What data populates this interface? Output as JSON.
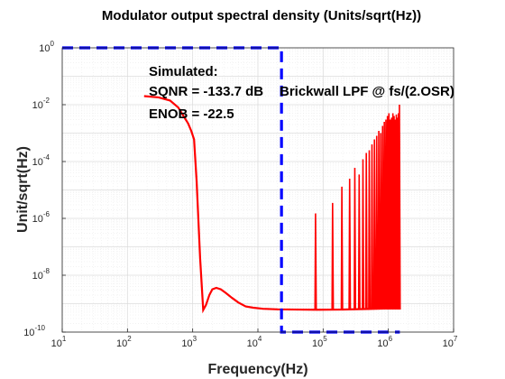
{
  "chart_data": {
    "type": "line",
    "title": "Modulator output spectral density (Units/sqrt(Hz))",
    "xlabel": "Frequency(Hz)",
    "ylabel": "Unit/sqrt(Hz)",
    "xscale": "log",
    "yscale": "log",
    "xlim": [
      10,
      10000000
    ],
    "ylim": [
      1e-10,
      1
    ],
    "grid": "major and minor",
    "x_tick_labels": [
      {
        "base": "10",
        "exp": "1"
      },
      {
        "base": "10",
        "exp": "2"
      },
      {
        "base": "10",
        "exp": "3"
      },
      {
        "base": "10",
        "exp": "4"
      },
      {
        "base": "10",
        "exp": "5"
      },
      {
        "base": "10",
        "exp": "6"
      },
      {
        "base": "10",
        "exp": "7"
      }
    ],
    "y_tick_labels": [
      {
        "base": "10",
        "exp": "-10"
      },
      {
        "base": "10",
        "exp": "-8"
      },
      {
        "base": "10",
        "exp": "-6"
      },
      {
        "base": "10",
        "exp": "-4"
      },
      {
        "base": "10",
        "exp": "-2"
      },
      {
        "base": "10",
        "exp": "0"
      }
    ],
    "series": [
      {
        "color": "#ff0000",
        "style": "solid",
        "x": [
          180,
          300,
          450,
          600,
          750,
          850,
          950,
          1050,
          1150,
          1300,
          1450,
          1600,
          1800,
          2000,
          2300,
          2700,
          3200,
          4000,
          5000,
          6500,
          8500,
          12000,
          20000,
          40000,
          80000,
          200000,
          500000,
          1000000,
          1500000
        ],
        "y": [
          0.02,
          0.018,
          0.014,
          0.008,
          0.0035,
          0.0022,
          0.0012,
          0.0006,
          2e-05,
          4e-08,
          6e-10,
          9e-10,
          2e-09,
          3.2e-09,
          3.6e-09,
          3.2e-09,
          2.4e-09,
          1.6e-09,
          1.1e-09,
          8e-10,
          7.2e-10,
          6.6e-10,
          6.3e-10,
          6.2e-10,
          6.1e-10,
          6.2e-10,
          6.5e-10,
          6.8e-10,
          7e-10
        ]
      },
      {
        "color": "#ff0000",
        "style": "spikes",
        "spike_x": [
          75000,
          137000,
          190000,
          250000,
          300000,
          350000,
          400000,
          450000,
          500000,
          550000,
          600000,
          650000,
          700000,
          750000,
          800000,
          850000,
          900000,
          950000,
          1000000,
          1050000,
          1100000,
          1150000,
          1200000,
          1250000,
          1300000,
          1350000,
          1400000,
          1450000
        ],
        "spike_y": [
          1.5e-06,
          3.5e-06,
          1.3e-05,
          2.5e-05,
          6e-05,
          3.5e-05,
          0.00012,
          0.0002,
          0.00025,
          0.0004,
          0.0006,
          0.0008,
          0.0012,
          0.001,
          0.0018,
          0.0025,
          0.003,
          0.004,
          0.005,
          0.003,
          0.0035,
          0.005,
          0.004,
          0.003,
          0.0045,
          0.0035,
          0.005,
          0.01
        ]
      },
      {
        "name": "Brickwall LPF @ fs/(2.OSR)",
        "color": "#0000ff",
        "style": "dashed",
        "x": [
          10,
          23000,
          23000,
          1500000
        ],
        "y": [
          1,
          1,
          1e-10,
          1e-10
        ]
      }
    ],
    "annotations": [
      "Simulated:",
      "SQNR = -133.7 dB",
      "ENOB = -22.5",
      "Brickwall LPF @ fs/(2.OSR)"
    ]
  }
}
